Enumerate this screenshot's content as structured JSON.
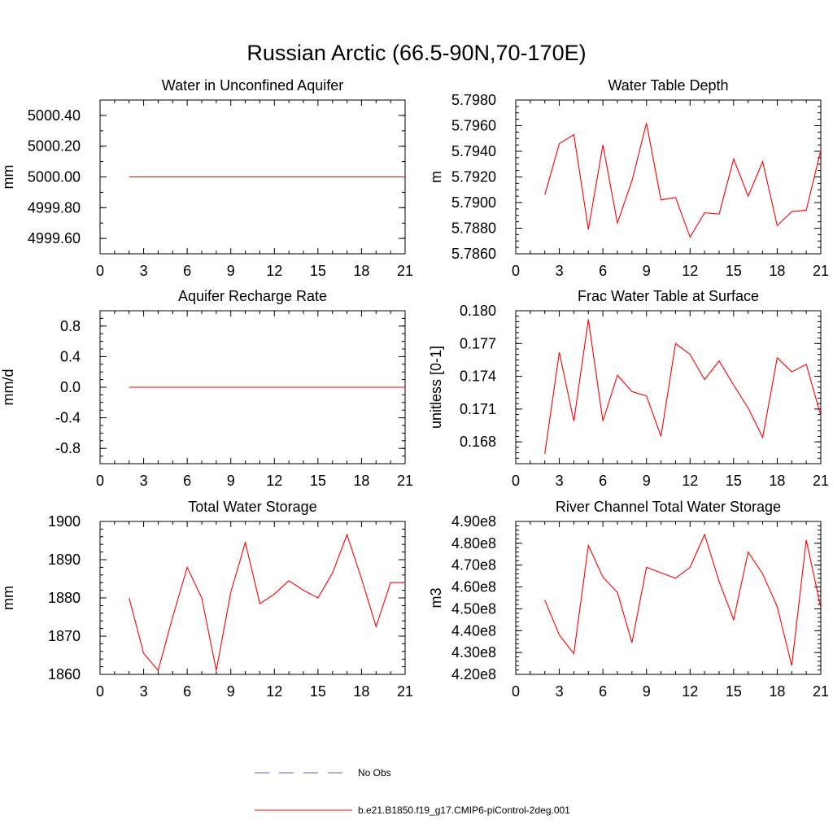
{
  "figure": {
    "title": "Russian Arctic (66.5-90N,70-170E)"
  },
  "legend": {
    "entries": [
      {
        "label": "No Obs",
        "color": "#5566bb",
        "style": "dashed"
      },
      {
        "label": "b.e21.B1850.f19_g17.CMIP6-piControl-2deg.001",
        "color": "#ff0000",
        "style": "solid"
      }
    ]
  },
  "chart_data": [
    {
      "type": "line",
      "title": "Water in Unconfined Aquifer",
      "ylabel": "mm",
      "xlim": [
        0,
        21
      ],
      "ylim": [
        4999.5,
        5000.5
      ],
      "xticks": [
        0,
        3,
        6,
        9,
        12,
        15,
        18,
        21
      ],
      "yticks": [
        4999.6,
        4999.8,
        5000.0,
        5000.2,
        5000.4
      ],
      "ytick_labels": [
        "4999.60",
        "4999.80",
        "5000.00",
        "5000.20",
        "5000.40"
      ],
      "ytick_minor": 0.1,
      "series": [
        {
          "color": "#ff0000",
          "x": [
            2,
            3,
            4,
            5,
            6,
            7,
            8,
            9,
            10,
            11,
            12,
            13,
            14,
            15,
            16,
            17,
            18,
            19,
            20,
            21
          ],
          "y": [
            5000,
            5000,
            5000,
            5000,
            5000,
            5000,
            5000,
            5000,
            5000,
            5000,
            5000,
            5000,
            5000,
            5000,
            5000,
            5000,
            5000,
            5000,
            5000,
            5000
          ]
        }
      ]
    },
    {
      "type": "line",
      "title": "Water Table Depth",
      "ylabel": "m",
      "xlim": [
        0,
        21
      ],
      "ylim": [
        5.786,
        5.798
      ],
      "xticks": [
        0,
        3,
        6,
        9,
        12,
        15,
        18,
        21
      ],
      "yticks": [
        5.786,
        5.788,
        5.79,
        5.792,
        5.794,
        5.796,
        5.798
      ],
      "ytick_labels": [
        "5.7860",
        "5.7880",
        "5.7900",
        "5.7920",
        "5.7940",
        "5.7960",
        "5.7980"
      ],
      "ytick_minor": 0.0005,
      "series": [
        {
          "color": "#ff0000",
          "x": [
            2,
            3,
            4,
            5,
            6,
            7,
            8,
            9,
            10,
            11,
            12,
            13,
            14,
            15,
            16,
            17,
            18,
            19,
            20,
            21
          ],
          "y": [
            5.7906,
            5.7946,
            5.7953,
            5.7879,
            5.7945,
            5.7884,
            5.7917,
            5.7962,
            5.7902,
            5.7904,
            5.7873,
            5.7892,
            5.7891,
            5.7934,
            5.7905,
            5.7932,
            5.7882,
            5.7893,
            5.7894,
            5.7941
          ]
        }
      ]
    },
    {
      "type": "line",
      "title": "Aquifer Recharge Rate",
      "ylabel": "mm/d",
      "xlim": [
        0,
        21
      ],
      "ylim": [
        -1.0,
        1.0
      ],
      "xticks": [
        0,
        3,
        6,
        9,
        12,
        15,
        18,
        21
      ],
      "yticks": [
        -0.8,
        -0.4,
        0.0,
        0.4,
        0.8
      ],
      "ytick_labels": [
        "-0.8",
        "-0.4",
        "0.0",
        "0.4",
        "0.8"
      ],
      "ytick_minor": 0.1,
      "series": [
        {
          "color": "#ff0000",
          "x": [
            2,
            3,
            4,
            5,
            6,
            7,
            8,
            9,
            10,
            11,
            12,
            13,
            14,
            15,
            16,
            17,
            18,
            19,
            20,
            21
          ],
          "y": [
            0,
            0,
            0,
            0,
            0,
            0,
            0,
            0,
            0,
            0,
            0,
            0,
            0,
            0,
            0,
            0,
            0,
            0,
            0,
            0
          ]
        }
      ]
    },
    {
      "type": "line",
      "title": "Frac Water Table at Surface",
      "ylabel": "unitless [0-1]",
      "xlim": [
        0,
        21
      ],
      "ylim": [
        0.166,
        0.18
      ],
      "xticks": [
        0,
        3,
        6,
        9,
        12,
        15,
        18,
        21
      ],
      "yticks": [
        0.168,
        0.171,
        0.174,
        0.177,
        0.18
      ],
      "ytick_labels": [
        "0.168",
        "0.171",
        "0.174",
        "0.177",
        "0.180"
      ],
      "ytick_minor": 0.0005,
      "series": [
        {
          "color": "#ff0000",
          "x": [
            2,
            3,
            4,
            5,
            6,
            7,
            8,
            9,
            10,
            11,
            12,
            13,
            14,
            15,
            16,
            17,
            18,
            19,
            20,
            21
          ],
          "y": [
            0.1669,
            0.1762,
            0.1699,
            0.1792,
            0.1699,
            0.1741,
            0.1726,
            0.1722,
            0.1685,
            0.177,
            0.176,
            0.1737,
            0.1754,
            0.1732,
            0.1711,
            0.1684,
            0.1757,
            0.1744,
            0.1751,
            0.1704
          ]
        }
      ]
    },
    {
      "type": "line",
      "title": "Total Water Storage",
      "ylabel": "mm",
      "xlim": [
        0,
        21
      ],
      "ylim": [
        1860,
        1900
      ],
      "xticks": [
        0,
        3,
        6,
        9,
        12,
        15,
        18,
        21
      ],
      "yticks": [
        1860,
        1870,
        1880,
        1890,
        1900
      ],
      "ytick_labels": [
        "1860",
        "1870",
        "1880",
        "1890",
        "1900"
      ],
      "ytick_minor": 2,
      "series": [
        {
          "color": "#ff0000",
          "x": [
            2,
            3,
            4,
            5,
            6,
            7,
            8,
            9,
            10,
            11,
            12,
            13,
            14,
            15,
            16,
            17,
            18,
            19,
            20,
            21
          ],
          "y": [
            1880,
            1865.5,
            1861,
            1875,
            1888,
            1880,
            1861,
            1881.5,
            1894.5,
            1878.5,
            1881,
            1884.5,
            1882,
            1880,
            1886.5,
            1896.5,
            1885,
            1872.5,
            1884,
            1884
          ]
        }
      ]
    },
    {
      "type": "line",
      "title": "River Channel Total Water Storage",
      "ylabel": "m3",
      "xlim": [
        0,
        21
      ],
      "ylim": [
        420000000,
        490000000
      ],
      "xticks": [
        0,
        3,
        6,
        9,
        12,
        15,
        18,
        21
      ],
      "yticks": [
        420000000,
        430000000,
        440000000,
        450000000,
        460000000,
        470000000,
        480000000,
        490000000
      ],
      "ytick_labels": [
        "4.20e8",
        "4.30e8",
        "4.40e8",
        "4.50e8",
        "4.60e8",
        "4.70e8",
        "4.80e8",
        "4.90e8"
      ],
      "ytick_minor": 2000000,
      "series": [
        {
          "color": "#ff0000",
          "x": [
            2,
            3,
            4,
            5,
            6,
            7,
            8,
            9,
            10,
            11,
            12,
            13,
            14,
            15,
            16,
            17,
            18,
            19,
            20,
            21
          ],
          "y": [
            454000000,
            438000000,
            429500000,
            479000000,
            464500000,
            457500000,
            434500000,
            469000000,
            466500000,
            464000000,
            469000000,
            484000000,
            462500000,
            445000000,
            476000000,
            466000000,
            451000000,
            424000000,
            481500000,
            450500000
          ]
        }
      ]
    }
  ]
}
